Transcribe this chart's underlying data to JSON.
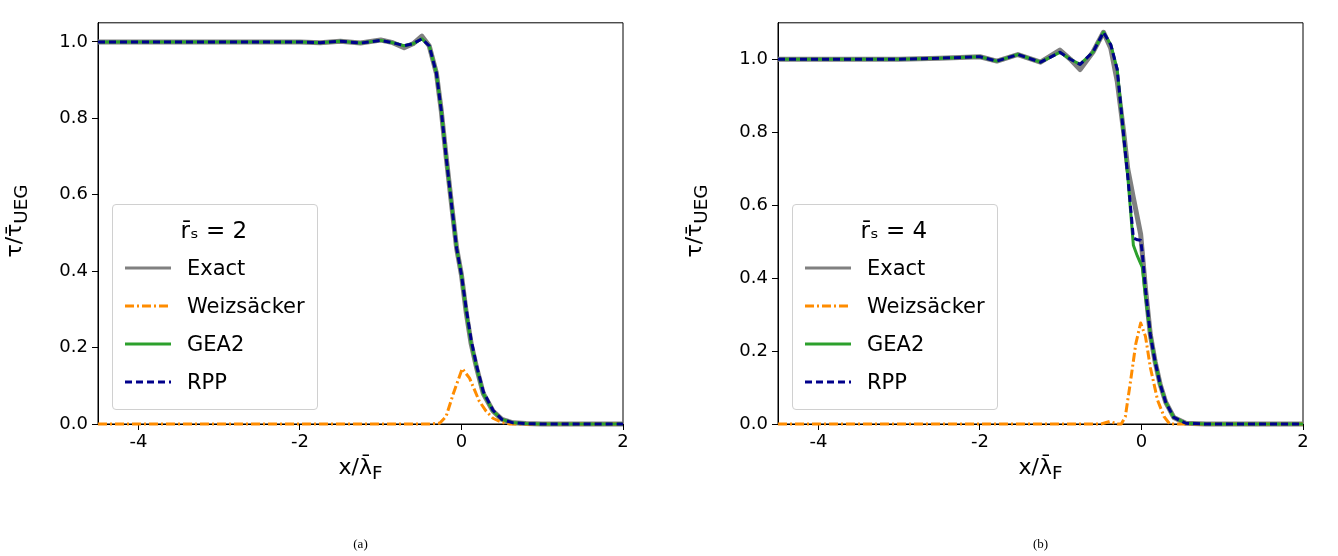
{
  "chart_data": [
    {
      "type": "line",
      "xlabel": "x/λ̄$_{F}$",
      "ylabel": "τ/τ̄$_{UEG}$",
      "legend_title": "r̄ₛ = 2",
      "legend": "lower left",
      "xlim": [
        -4.5,
        2
      ],
      "xticks": [
        -4,
        -2,
        0,
        2
      ],
      "ylim": [
        0,
        1.05
      ],
      "yticks": [
        {
          "value": 0,
          "label": "0.0"
        },
        {
          "value": 0.2,
          "label": "0.2"
        },
        {
          "value": 0.4,
          "label": "0.4"
        },
        {
          "value": 0.6,
          "label": "0.6"
        },
        {
          "value": 0.8,
          "label": "0.8"
        },
        {
          "value": 1,
          "label": "1.0"
        }
      ],
      "annotations": [
        "(a)"
      ],
      "series": [
        {
          "name": "Exact",
          "color": "#808080",
          "line_style": "solid",
          "x": [
            -4.5,
            -4,
            -3.5,
            -3,
            -2.5,
            -2,
            -1.75,
            -1.5,
            -1.25,
            -1.0,
            -0.85,
            -0.71,
            -0.6,
            -0.49,
            -0.4,
            -0.31,
            -0.25,
            -0.19,
            -0.12,
            -0.06,
            0,
            0.06,
            0.12,
            0.19,
            0.27,
            0.39,
            0.5,
            0.64,
            0.8,
            1.0,
            1.5,
            2
          ],
          "values": [
            1,
            1,
            1,
            1,
            1,
            1,
            0.998,
            1.002,
            0.997,
            1.005,
            0.998,
            0.985,
            0.995,
            1.015,
            0.99,
            0.918,
            0.82,
            0.7,
            0.57,
            0.46,
            0.39,
            0.29,
            0.21,
            0.145,
            0.08,
            0.034,
            0.012,
            0.003,
            0.001,
            0,
            0,
            0
          ]
        },
        {
          "name": "Weizsäcker",
          "color": "#ff8c00",
          "line_style": "dashdot",
          "x": [
            -4.5,
            -1,
            -0.4,
            -0.27,
            -0.19,
            -0.1,
            0.01,
            0.1,
            0.22,
            0.3,
            0.39,
            0.5,
            0.6,
            2
          ],
          "values": [
            0,
            0,
            0,
            0.002,
            0.02,
            0.08,
            0.145,
            0.12,
            0.06,
            0.035,
            0.015,
            0.004,
            0,
            0
          ]
        },
        {
          "name": "GEA2",
          "color": "#2ca02c",
          "line_style": "solid",
          "x": [
            -4.5,
            -4,
            -3.5,
            -3,
            -2.5,
            -2,
            -1.75,
            -1.5,
            -1.25,
            -1.0,
            -0.85,
            -0.71,
            -0.6,
            -0.49,
            -0.4,
            -0.31,
            -0.25,
            -0.19,
            -0.12,
            -0.06,
            0,
            0.06,
            0.12,
            0.19,
            0.27,
            0.39,
            0.5,
            0.64,
            0.8,
            1.0,
            1.5,
            2
          ],
          "values": [
            1,
            1,
            1,
            1,
            1,
            1,
            0.998,
            1.002,
            0.997,
            1.004,
            0.998,
            0.99,
            0.995,
            1.008,
            0.99,
            0.918,
            0.82,
            0.7,
            0.57,
            0.46,
            0.39,
            0.29,
            0.21,
            0.145,
            0.08,
            0.034,
            0.012,
            0.003,
            0.001,
            0,
            0,
            0
          ]
        },
        {
          "name": "RPP",
          "color": "#00008b",
          "line_style": "dashed",
          "x": [
            -4.5,
            -4,
            -3.5,
            -3,
            -2.5,
            -2,
            -1.75,
            -1.5,
            -1.25,
            -1.0,
            -0.85,
            -0.71,
            -0.6,
            -0.49,
            -0.4,
            -0.31,
            -0.25,
            -0.19,
            -0.12,
            -0.06,
            0,
            0.06,
            0.12,
            0.19,
            0.27,
            0.39,
            0.5,
            0.64,
            0.8,
            1.0,
            1.5,
            2
          ],
          "values": [
            1,
            1,
            1,
            1,
            1,
            1,
            0.998,
            1.002,
            0.997,
            1.004,
            0.998,
            0.99,
            0.995,
            1.008,
            0.99,
            0.918,
            0.82,
            0.7,
            0.57,
            0.46,
            0.39,
            0.3,
            0.22,
            0.15,
            0.085,
            0.036,
            0.012,
            0.003,
            0.001,
            0,
            0,
            0
          ]
        }
      ]
    },
    {
      "type": "line",
      "xlabel": "x/λ̄$_{F}$",
      "ylabel": "τ/τ̄$_{UEG}$",
      "legend_title": "r̄ₛ = 4",
      "legend": "lower left",
      "xlim": [
        -4.5,
        2
      ],
      "xticks": [
        -4,
        -2,
        0,
        2
      ],
      "ylim": [
        0,
        1.1
      ],
      "yticks": [
        {
          "value": 0,
          "label": "0.0"
        },
        {
          "value": 0.2,
          "label": "0.2"
        },
        {
          "value": 0.4,
          "label": "0.4"
        },
        {
          "value": 0.6,
          "label": "0.6"
        },
        {
          "value": 0.8,
          "label": "0.8"
        },
        {
          "value": 1,
          "label": "1.0"
        }
      ],
      "annotations": [
        "(b)"
      ],
      "series": [
        {
          "name": "Exact",
          "color": "#808080",
          "line_style": "solid",
          "x": [
            -4.5,
            -4,
            -3,
            -2.5,
            -2,
            -1.79,
            -1.53,
            -1.25,
            -1.01,
            -0.88,
            -0.76,
            -0.6,
            -0.47,
            -0.38,
            -0.3,
            -0.22,
            -0.17,
            -0.1,
            -0.05,
            -0.01,
            0.01,
            0.05,
            0.11,
            0.17,
            0.23,
            0.3,
            0.4,
            0.55,
            0.8,
            1.2,
            2
          ],
          "values": [
            1,
            1,
            1,
            1.003,
            1.007,
            0.995,
            1.013,
            0.992,
            1.025,
            1.0,
            0.972,
            1.02,
            1.074,
            1.03,
            0.94,
            0.8,
            0.7,
            0.62,
            0.565,
            0.52,
            0.47,
            0.37,
            0.245,
            0.17,
            0.11,
            0.06,
            0.018,
            0.002,
            0,
            0,
            0
          ]
        },
        {
          "name": "Weizsäcker",
          "color": "#ff8c00",
          "line_style": "dashdot",
          "x": [
            -4.5,
            -1,
            -0.5,
            -0.39,
            -0.3,
            -0.25,
            -0.2,
            -0.14,
            -0.07,
            -0.01,
            0.05,
            0.11,
            0.2,
            0.28,
            0.35,
            2
          ],
          "values": [
            0,
            0,
            0,
            0.007,
            0,
            0,
            0.02,
            0.11,
            0.22,
            0.277,
            0.24,
            0.155,
            0.065,
            0.02,
            0,
            0
          ]
        },
        {
          "name": "GEA2",
          "color": "#2ca02c",
          "line_style": "solid",
          "x": [
            -4.5,
            -4,
            -3,
            -2.5,
            -2,
            -1.79,
            -1.53,
            -1.25,
            -1.01,
            -0.88,
            -0.76,
            -0.6,
            -0.47,
            -0.38,
            -0.3,
            -0.22,
            -0.17,
            -0.1,
            -0.05,
            -0.01,
            0.01,
            0.05,
            0.11,
            0.17,
            0.23,
            0.3,
            0.4,
            0.55,
            0.8,
            1.2,
            2
          ],
          "values": [
            1,
            1,
            1,
            1.003,
            1.007,
            0.995,
            1.013,
            0.992,
            1.019,
            1.0,
            0.986,
            1.02,
            1.074,
            1.04,
            0.972,
            0.79,
            0.68,
            0.49,
            0.46,
            0.44,
            0.43,
            0.35,
            0.245,
            0.17,
            0.11,
            0.06,
            0.018,
            0.002,
            0,
            0,
            0
          ]
        },
        {
          "name": "RPP",
          "color": "#00008b",
          "line_style": "dashed",
          "x": [
            -4.5,
            -4,
            -3,
            -2.5,
            -2,
            -1.79,
            -1.53,
            -1.25,
            -1.01,
            -0.88,
            -0.76,
            -0.6,
            -0.47,
            -0.38,
            -0.3,
            -0.22,
            -0.17,
            -0.1,
            -0.05,
            -0.01,
            0.01,
            0.05,
            0.11,
            0.17,
            0.23,
            0.3,
            0.4,
            0.55,
            0.8,
            1.2,
            2
          ],
          "values": [
            1,
            1,
            1,
            1.003,
            1.007,
            0.995,
            1.013,
            0.992,
            1.019,
            1.0,
            0.986,
            1.02,
            1.074,
            1.04,
            0.972,
            0.79,
            0.68,
            0.51,
            0.505,
            0.504,
            0.47,
            0.37,
            0.245,
            0.17,
            0.11,
            0.06,
            0.018,
            0.002,
            0,
            0,
            0
          ]
        }
      ]
    }
  ]
}
